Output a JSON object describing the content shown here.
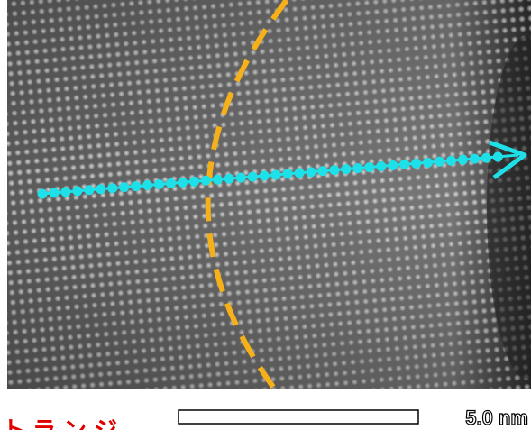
{
  "scale_bar": {
    "label": "5.0 nm"
  },
  "caption": "トランジ"
}
